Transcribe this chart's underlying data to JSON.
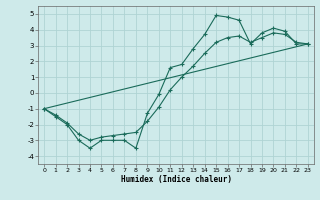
{
  "xlabel": "Humidex (Indice chaleur)",
  "bg_color": "#ceeaea",
  "grid_color": "#afd4d4",
  "line_color": "#1a6b5a",
  "xlim": [
    -0.5,
    23.5
  ],
  "ylim": [
    -4.5,
    5.5
  ],
  "xticks": [
    0,
    1,
    2,
    3,
    4,
    5,
    6,
    7,
    8,
    9,
    10,
    11,
    12,
    13,
    14,
    15,
    16,
    17,
    18,
    19,
    20,
    21,
    22,
    23
  ],
  "yticks": [
    -4,
    -3,
    -2,
    -1,
    0,
    1,
    2,
    3,
    4,
    5
  ],
  "curve1_x": [
    0,
    1,
    2,
    3,
    4,
    5,
    6,
    7,
    8,
    9,
    10,
    11,
    12,
    13,
    14,
    15,
    16,
    17,
    18,
    19,
    20,
    21,
    22,
    23
  ],
  "curve1_y": [
    -1.0,
    -1.5,
    -2.0,
    -3.0,
    -3.5,
    -3.0,
    -3.0,
    -3.0,
    -3.5,
    -1.3,
    -0.1,
    1.6,
    1.8,
    2.8,
    3.7,
    4.9,
    4.8,
    4.6,
    3.1,
    3.8,
    4.1,
    3.9,
    3.1,
    3.1
  ],
  "curve2_x": [
    0,
    1,
    2,
    3,
    4,
    5,
    6,
    7,
    8,
    9,
    10,
    11,
    12,
    13,
    14,
    15,
    16,
    17,
    18,
    19,
    20,
    21,
    22,
    23
  ],
  "curve2_y": [
    -1.0,
    -1.4,
    -1.9,
    -2.6,
    -3.0,
    -2.8,
    -2.7,
    -2.6,
    -2.5,
    -1.8,
    -0.9,
    0.2,
    1.0,
    1.7,
    2.5,
    3.2,
    3.5,
    3.6,
    3.2,
    3.5,
    3.8,
    3.7,
    3.2,
    3.1
  ],
  "line3_x": [
    0,
    23
  ],
  "line3_y": [
    -1.0,
    3.1
  ]
}
